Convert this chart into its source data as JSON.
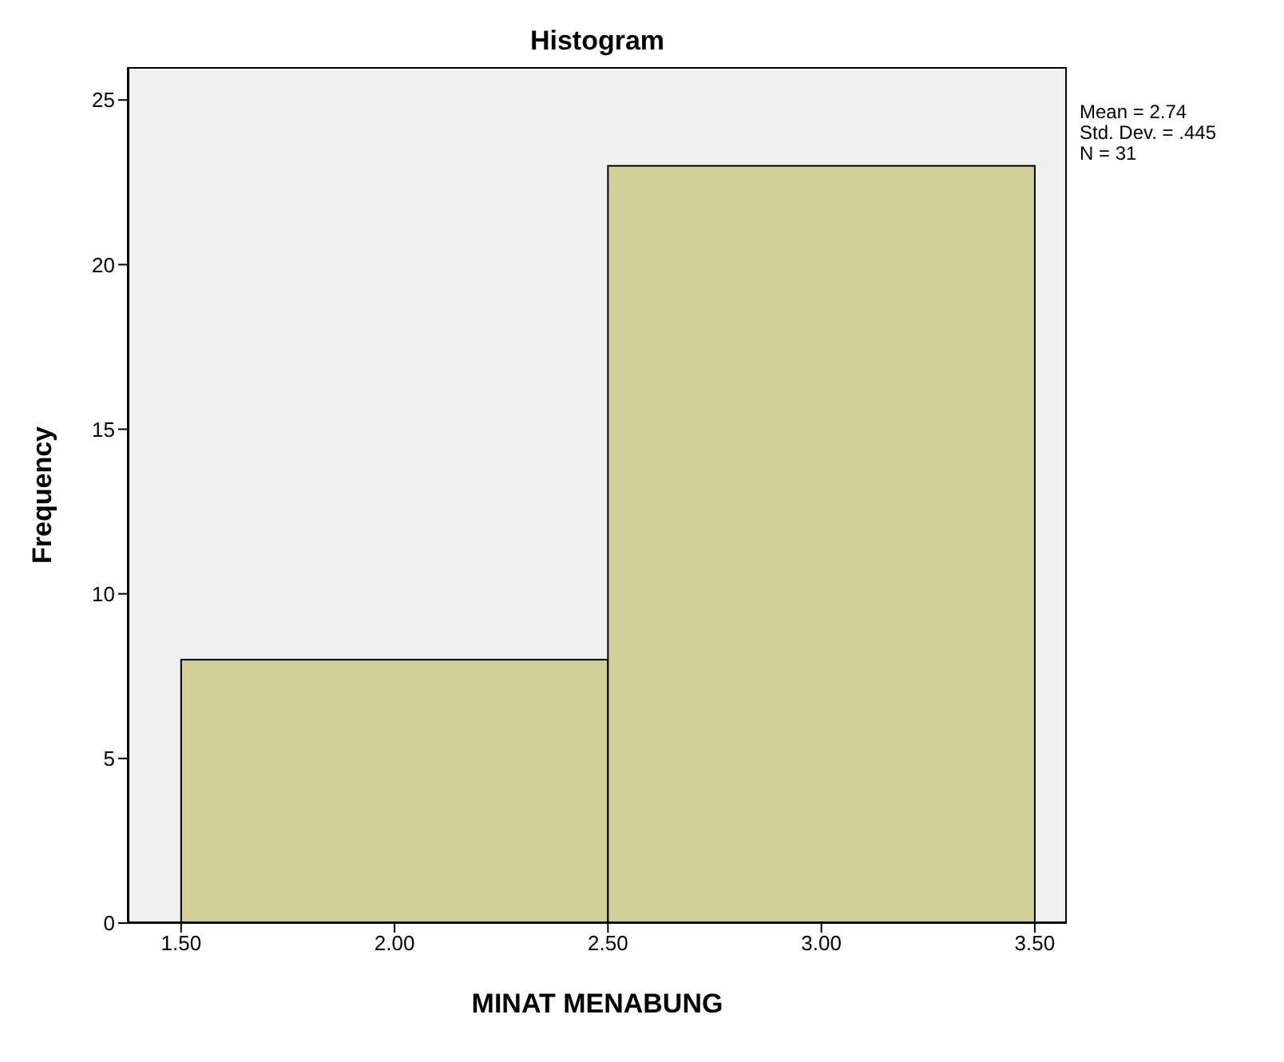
{
  "chart_data": {
    "type": "histogram",
    "title": "Histogram",
    "xlabel": "MINAT MENABUNG",
    "ylabel": "Frequency",
    "bins": [
      1.5,
      2.5,
      3.5
    ],
    "values": [
      8,
      23
    ],
    "color": "#d3cf98",
    "xlim": [
      1.375,
      3.575
    ],
    "xticks": [
      {
        "value": 1.5,
        "label": "1.50"
      },
      {
        "value": 2,
        "label": "2.00"
      },
      {
        "value": 2.5,
        "label": "2.50"
      },
      {
        "value": 3,
        "label": "3.00"
      },
      {
        "value": 3.5,
        "label": "3.50"
      }
    ],
    "ylim": [
      0,
      26
    ],
    "yticks": [
      0,
      5,
      10,
      15,
      20,
      25
    ],
    "grid": false,
    "annotations": [
      "Mean = 2.74",
      "Std. Dev. = .445",
      "N = 31"
    ]
  }
}
